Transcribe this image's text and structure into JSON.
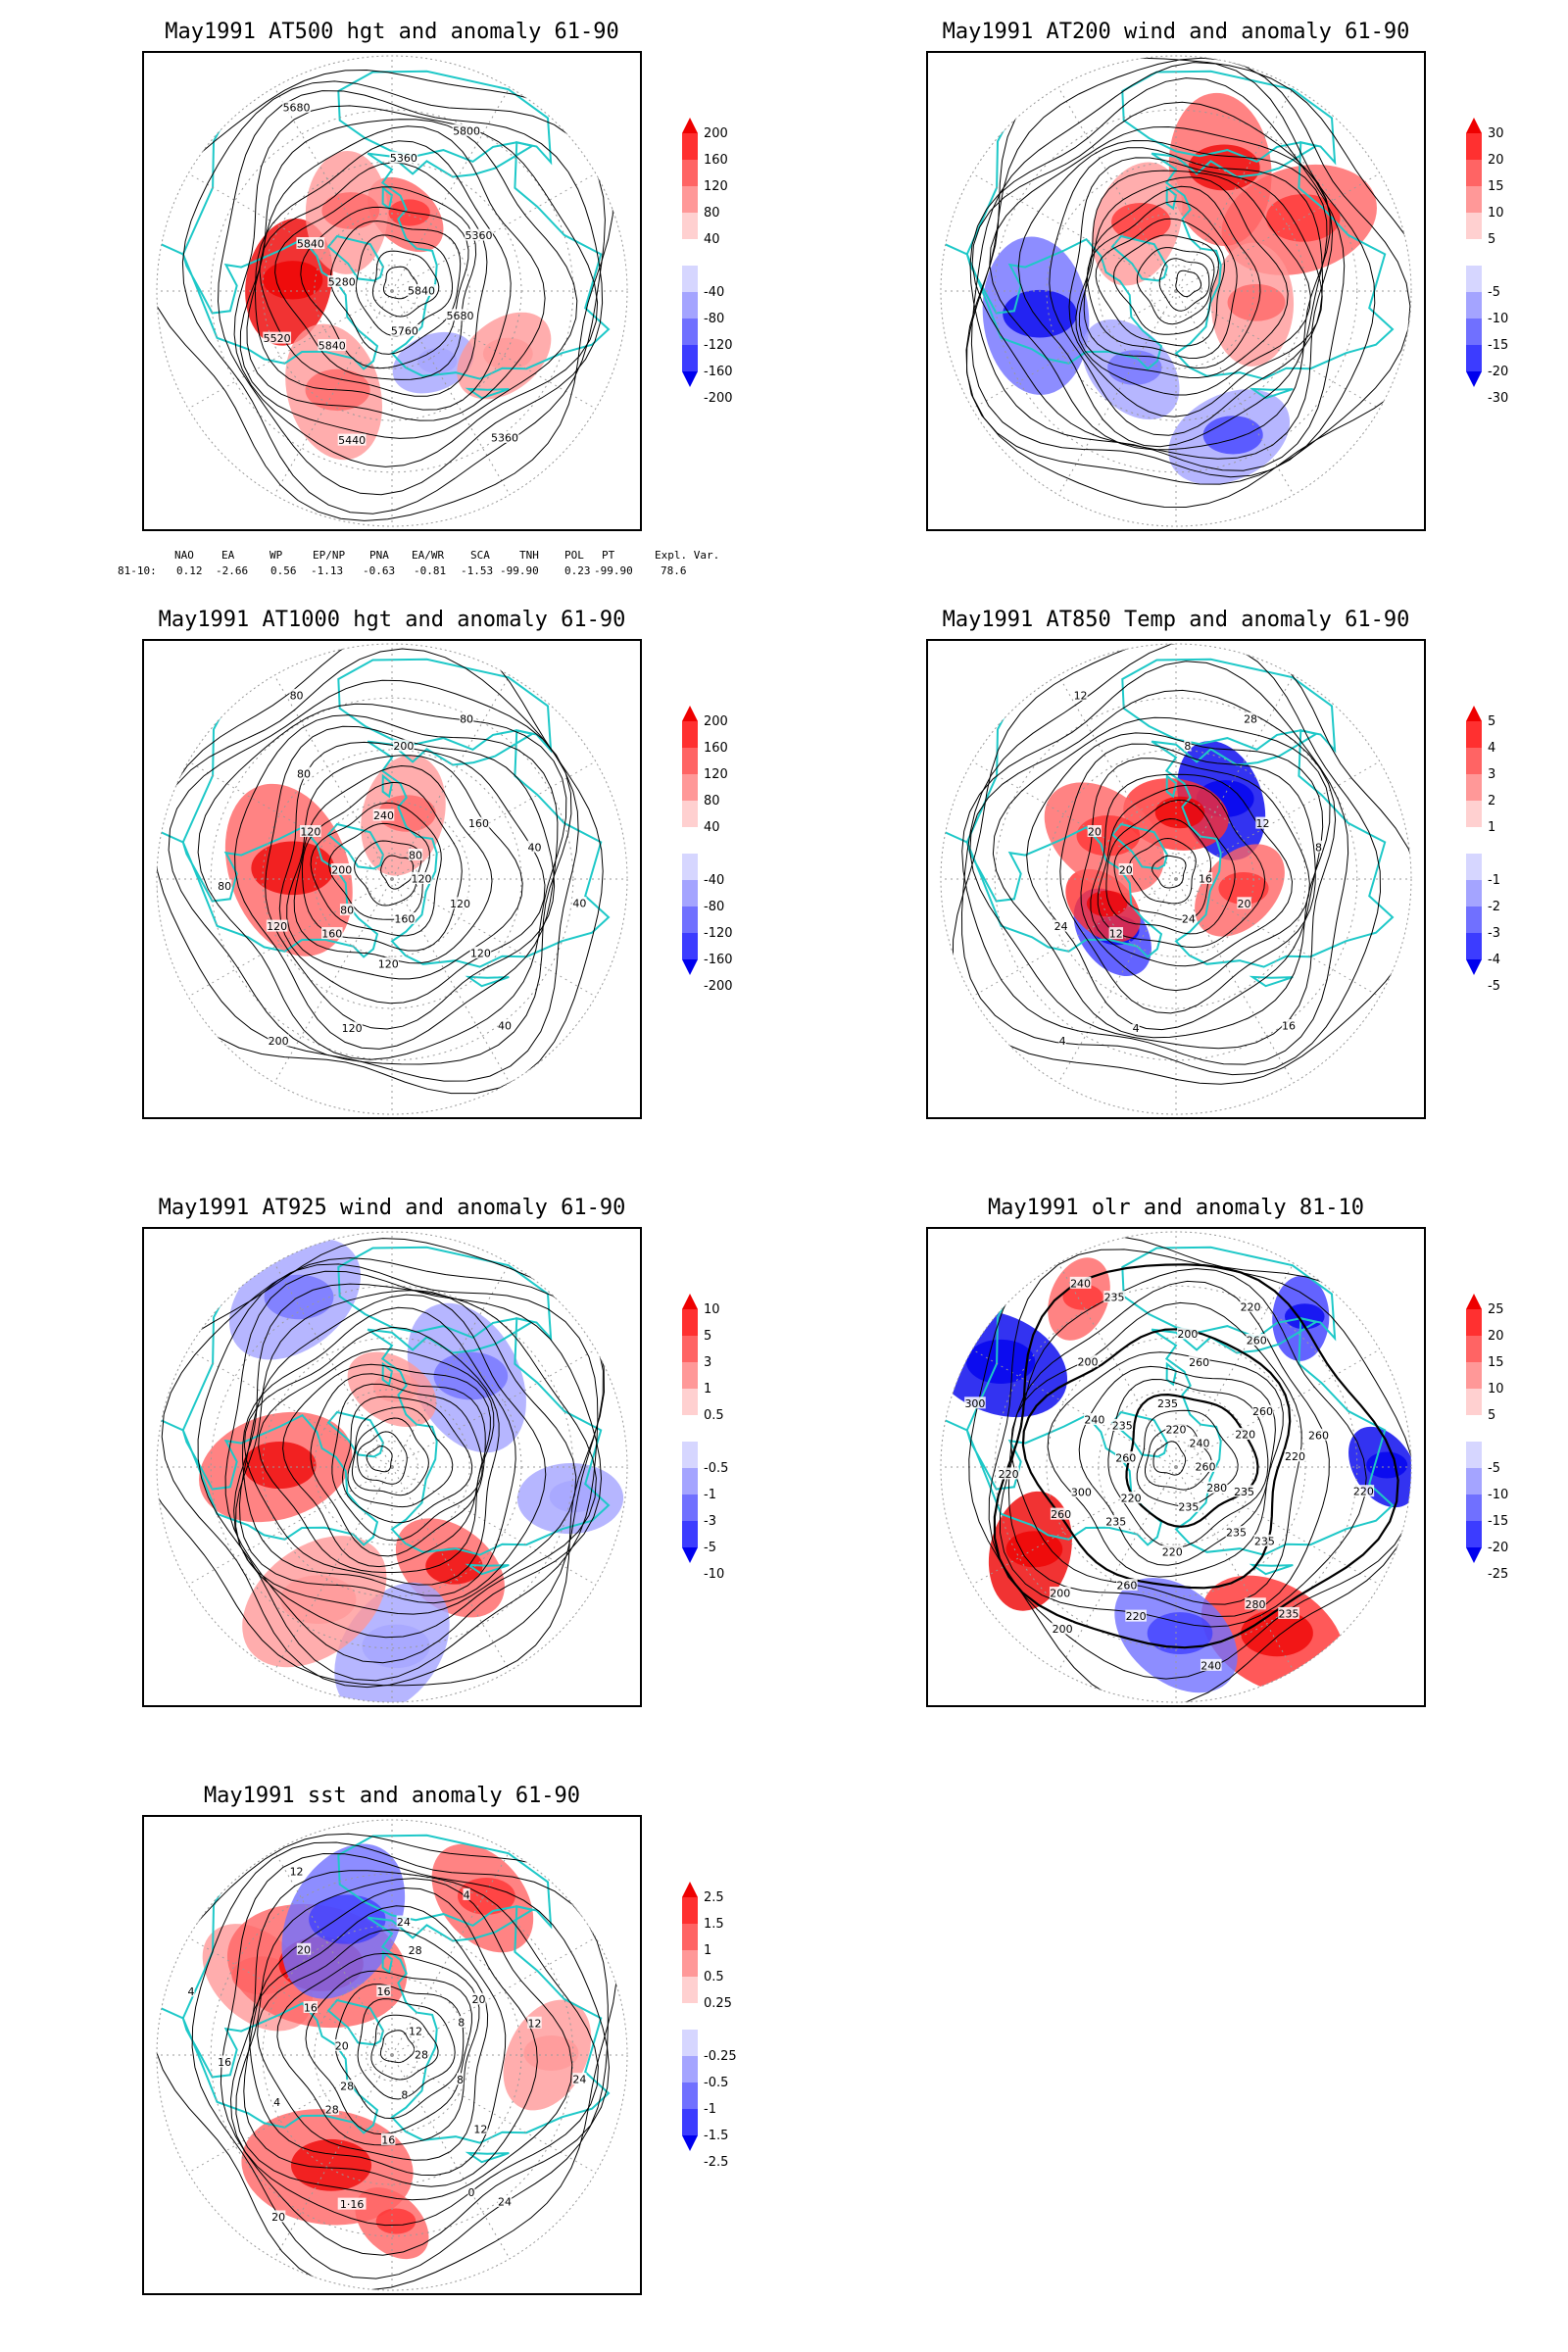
{
  "panels": [
    {
      "id": "p1",
      "title": "May1991 AT500 hgt and anomaly 61-90",
      "colorbar": [
        "200",
        "160",
        "120",
        "80",
        "40",
        "-40",
        "-80",
        "-120",
        "-160",
        "-200"
      ],
      "contour_labels": [
        "5840",
        "5840",
        "5360",
        "5360",
        "5280",
        "5360",
        "5440",
        "5680",
        "5680",
        "5520",
        "5800",
        "5760",
        "5840"
      ],
      "anomaly_blobs": [
        {
          "lon": -85,
          "lat": 50,
          "val": 160
        },
        {
          "lon": 10,
          "lat": 60,
          "val": 80
        },
        {
          "lon": -30,
          "lat": 55,
          "val": 60
        },
        {
          "lon": 150,
          "lat": 58,
          "val": -40
        },
        {
          "lon": -150,
          "lat": 45,
          "val": 50
        },
        {
          "lon": 120,
          "lat": 40,
          "val": 40
        }
      ]
    },
    {
      "id": "p2",
      "title": "May1991 AT200 wind and anomaly 61-90",
      "colorbar": [
        "30",
        "20",
        "15",
        "10",
        "5",
        "-5",
        "-10",
        "-15",
        "-20",
        "-30"
      ],
      "contour_labels": [],
      "anomaly_blobs": [
        {
          "lon": 20,
          "lat": 40,
          "val": 15
        },
        {
          "lon": 60,
          "lat": 35,
          "val": 12
        },
        {
          "lon": -100,
          "lat": 35,
          "val": -15
        },
        {
          "lon": -30,
          "lat": 60,
          "val": 10
        },
        {
          "lon": 160,
          "lat": 30,
          "val": -10
        },
        {
          "lon": -150,
          "lat": 55,
          "val": -8
        },
        {
          "lon": 100,
          "lat": 60,
          "val": 8
        }
      ]
    },
    {
      "id": "p3",
      "title": "May1991 AT1000 hgt and anomaly 61-90",
      "colorbar": [
        "200",
        "160",
        "120",
        "80",
        "40",
        "-40",
        "-80",
        "-120",
        "-160",
        "-200"
      ],
      "contour_labels": [
        "120",
        "160",
        "200",
        "40",
        "200",
        "160",
        "120",
        "80",
        "120",
        "120",
        "80",
        "160",
        "120",
        "40",
        "200",
        "240",
        "120",
        "80",
        "80",
        "120",
        "80",
        "40",
        "80"
      ],
      "anomaly_blobs": [
        {
          "lon": -85,
          "lat": 50,
          "val": 100
        },
        {
          "lon": 10,
          "lat": 65,
          "val": 60
        }
      ]
    },
    {
      "id": "p4",
      "title": "May1991 AT850 Temp and anomaly 61-90",
      "colorbar": [
        "5",
        "4",
        "3",
        "2",
        "1",
        "-1",
        "-2",
        "-3",
        "-4",
        "-5"
      ],
      "contour_labels": [
        "16",
        "12",
        "8",
        "16",
        "20",
        "12",
        "4",
        "12",
        "20",
        "24",
        "28",
        "24",
        "20",
        "8",
        "4"
      ],
      "anomaly_blobs": [
        {
          "lon": -130,
          "lat": 58,
          "val": -3
        },
        {
          "lon": -110,
          "lat": 60,
          "val": 3
        },
        {
          "lon": 30,
          "lat": 55,
          "val": -4
        },
        {
          "lon": 0,
          "lat": 65,
          "val": 3
        },
        {
          "lon": 100,
          "lat": 65,
          "val": 2
        },
        {
          "lon": -60,
          "lat": 58,
          "val": 2
        }
      ]
    },
    {
      "id": "p5",
      "title": "May1991 AT925 wind and anomaly 61-90",
      "colorbar": [
        "10",
        "5",
        "3",
        "1",
        "0.5",
        "-0.5",
        "-1",
        "-3",
        "-5",
        "-10"
      ],
      "contour_labels": [],
      "anomaly_blobs": [
        {
          "lon": 150,
          "lat": 45,
          "val": 5
        },
        {
          "lon": -90,
          "lat": 45,
          "val": 5
        },
        {
          "lon": 40,
          "lat": 45,
          "val": -3
        },
        {
          "lon": -30,
          "lat": 15,
          "val": -3
        },
        {
          "lon": 0,
          "lat": 60,
          "val": 2
        },
        {
          "lon": 180,
          "lat": 20,
          "val": -2
        },
        {
          "lon": -150,
          "lat": 30,
          "val": 2
        },
        {
          "lon": 100,
          "lat": 20,
          "val": -2
        }
      ]
    },
    {
      "id": "p6",
      "title": "May1991 olr and anomaly 81-10",
      "colorbar": [
        "25",
        "20",
        "15",
        "10",
        "5",
        "-5",
        "-10",
        "-15",
        "-20",
        "-25"
      ],
      "contour_labels": [
        "260",
        "235",
        "200",
        "235",
        "260",
        "260",
        "220",
        "240",
        "235",
        "260",
        "220",
        "235",
        "240",
        "260",
        "200",
        "235",
        "235",
        "220",
        "240",
        "220",
        "200",
        "220",
        "220",
        "260",
        "280",
        "300",
        "220",
        "260",
        "235",
        "280",
        "300",
        "260",
        "240",
        "235",
        "220",
        "200",
        "220",
        "235"
      ],
      "anomaly_blobs": [
        {
          "lon": -60,
          "lat": 10,
          "val": -20
        },
        {
          "lon": -120,
          "lat": 25,
          "val": 20
        },
        {
          "lon": 90,
          "lat": 10,
          "val": -20
        },
        {
          "lon": 40,
          "lat": 15,
          "val": -15
        },
        {
          "lon": -30,
          "lat": 15,
          "val": 10
        },
        {
          "lon": 150,
          "lat": 15,
          "val": 15
        },
        {
          "lon": 180,
          "lat": 25,
          "val": -10
        }
      ]
    },
    {
      "id": "p7",
      "title": "May1991 sst and anomaly 61-90",
      "colorbar": [
        "2.5",
        "1.5",
        "1",
        "0.5",
        "0.25",
        "-0.25",
        "-0.5",
        "-1",
        "-1.5",
        "-2.5"
      ],
      "contour_labels": [
        "28",
        "28",
        "24",
        "24",
        "20",
        "20",
        "1·16",
        "12",
        "8",
        "4",
        "4",
        "8",
        "16",
        "12",
        "20",
        "16",
        "12",
        "16",
        "12",
        "16",
        "20",
        "24",
        "28",
        "28",
        "0",
        "4",
        "8"
      ],
      "anomaly_blobs": [
        {
          "lon": -150,
          "lat": 40,
          "val": 1.2
        },
        {
          "lon": 180,
          "lat": 25,
          "val": 1
        },
        {
          "lon": 30,
          "lat": 20,
          "val": 1
        },
        {
          "lon": -60,
          "lat": 30,
          "val": 0.6
        },
        {
          "lon": -40,
          "lat": 45,
          "val": 1.2
        },
        {
          "lon": -20,
          "lat": 35,
          "val": -1
        },
        {
          "lon": 90,
          "lat": 30,
          "val": 0.5
        }
      ]
    }
  ],
  "teleconnection": {
    "headers": [
      "NAO",
      "EA",
      "WP",
      "EP/NP",
      "PNA",
      "EA/WR",
      "SCA",
      "TNH",
      "POL",
      "PT",
      "Expl. Var."
    ],
    "row_label": "81-10:",
    "values": [
      "0.12",
      "-2.66",
      "0.56",
      "-1.13",
      "-0.63",
      "-0.81",
      "-1.53",
      "-99.90",
      "0.23",
      "-99.90",
      "78.6"
    ]
  },
  "colors": {
    "pos": [
      "#ee0000",
      "#ff3030",
      "#ff6464",
      "#ff9898",
      "#ffd0d0"
    ],
    "neg": [
      "#d6d6ff",
      "#a4a4ff",
      "#7070ff",
      "#3c3cff",
      "#0000ee"
    ],
    "coast": "#1ec8c8",
    "contour": "#000000",
    "grid": "#9a9a9a"
  }
}
